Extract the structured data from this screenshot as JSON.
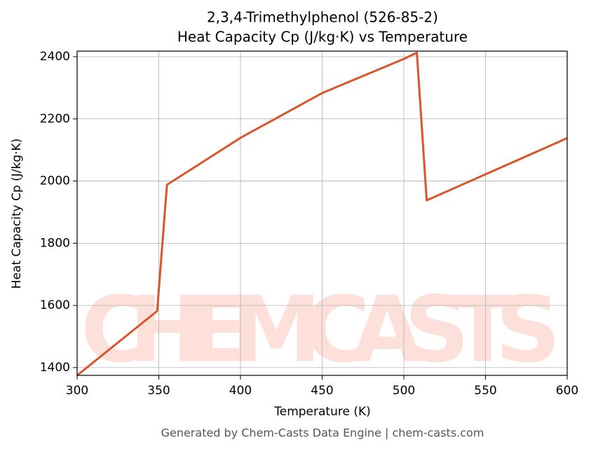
{
  "chart_data": {
    "type": "line",
    "title": "2,3,4-Trimethylphenol (526-85-2)",
    "subtitle": "Heat Capacity Cp (J/kg·K) vs Temperature",
    "x_label": "Temperature (K)",
    "y_label": "Heat Capacity Cp (J/kg·K)",
    "footer": "Generated by Chem-Casts Data Engine | chem-casts.com",
    "watermark": "CHEMCASTS",
    "x": [
      300,
      349,
      355,
      400,
      450,
      500,
      508,
      514,
      600
    ],
    "series": [
      {
        "name": "Heat Capacity Cp",
        "color": "#d9552b",
        "values": [
          1375,
          1582,
          1988,
          2139,
          2283,
          2393,
          2413,
          1938,
          2138
        ]
      }
    ],
    "xlim": [
      300,
      600
    ],
    "xticks": [
      300,
      350,
      400,
      450,
      500,
      550,
      600
    ],
    "ylim": [
      1375,
      2418
    ],
    "yticks": [
      1400,
      1600,
      1800,
      2000,
      2200,
      2400
    ],
    "grid": true
  }
}
